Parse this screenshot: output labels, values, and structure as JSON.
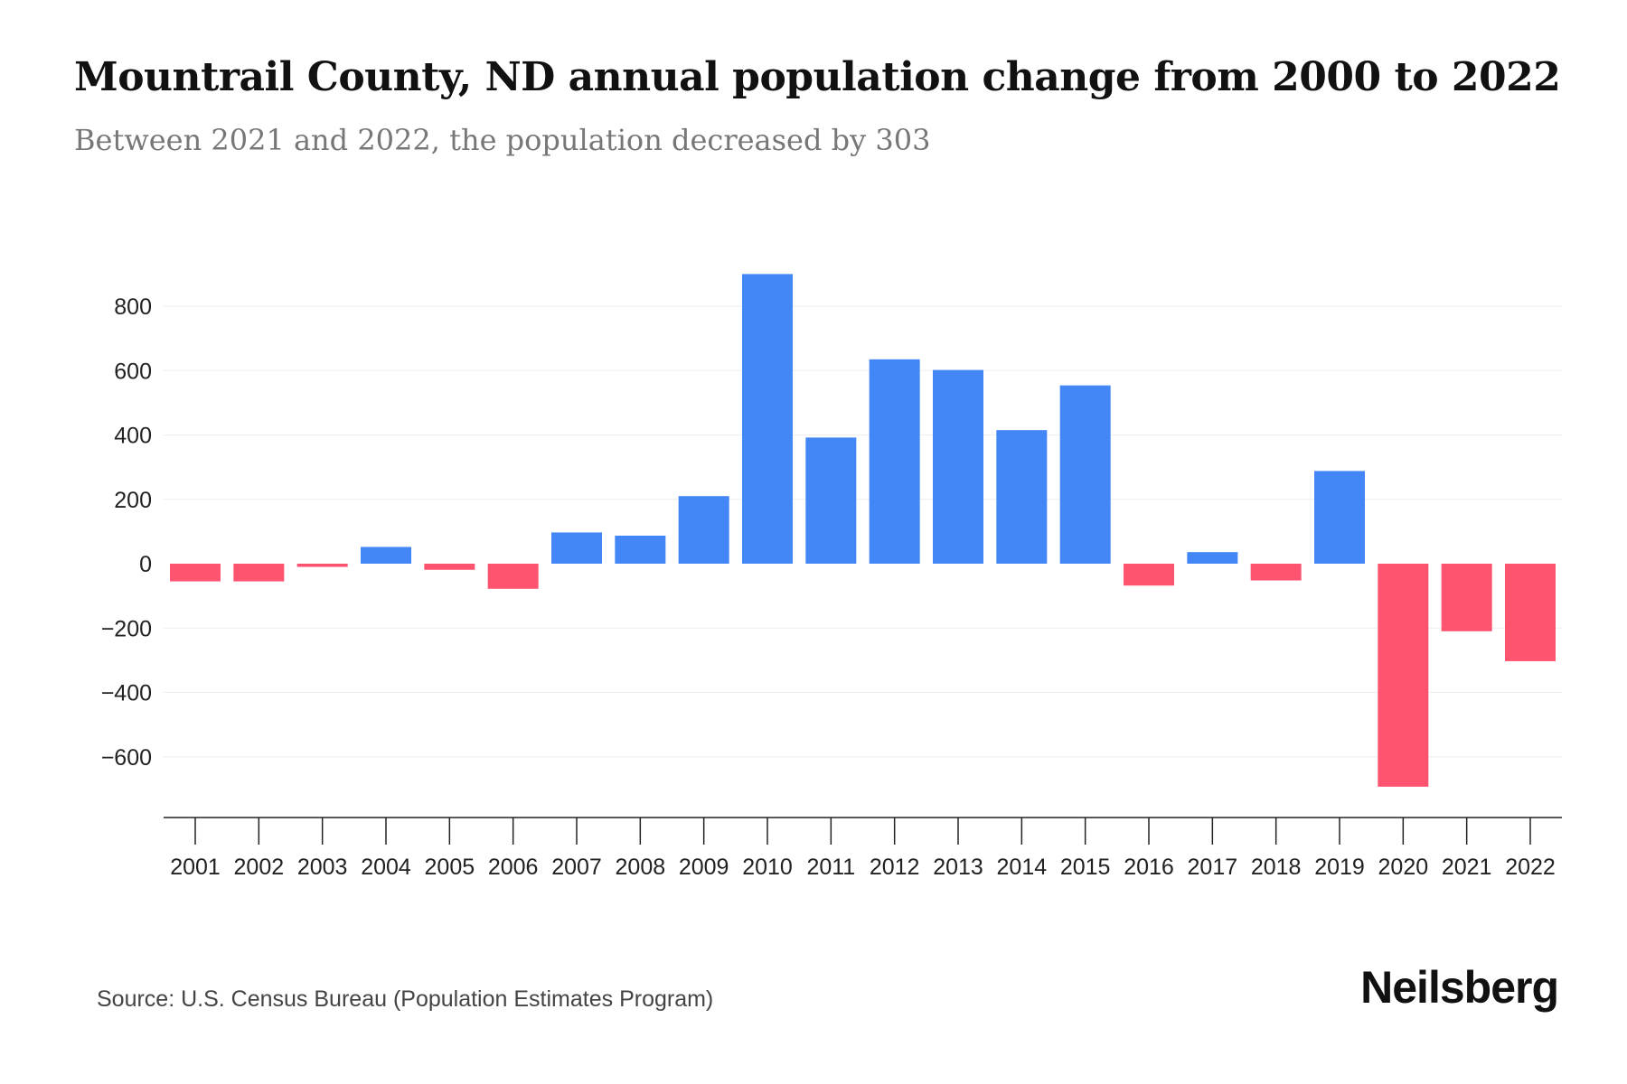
{
  "title": "Mountrail County, ND annual population change from 2000 to 2022",
  "subtitle": "Between 2021 and 2022, the population decreased by 303",
  "source": "Source: U.S. Census Bureau (Population Estimates Program)",
  "logo": "Neilsberg",
  "colors": {
    "positive": "#4287f5",
    "negative": "#ff5470"
  },
  "chart_data": {
    "type": "bar",
    "title": "Mountrail County, ND annual population change from 2000 to 2022",
    "xlabel": "",
    "ylabel": "",
    "categories": [
      "2001",
      "2002",
      "2003",
      "2004",
      "2005",
      "2006",
      "2007",
      "2008",
      "2009",
      "2010",
      "2011",
      "2012",
      "2013",
      "2014",
      "2015",
      "2016",
      "2017",
      "2018",
      "2019",
      "2020",
      "2021",
      "2022"
    ],
    "values": [
      -55,
      -55,
      -10,
      52,
      -19,
      -78,
      97,
      87,
      210,
      900,
      392,
      635,
      602,
      415,
      554,
      -68,
      36,
      -52,
      288,
      -693,
      -210,
      -303
    ],
    "yticks": [
      -600,
      -400,
      -200,
      0,
      200,
      400,
      600,
      800
    ],
    "ytick_labels": [
      "−600",
      "−400",
      "−200",
      "0",
      "200",
      "400",
      "600",
      "800"
    ],
    "ylim": [
      -790,
      900
    ],
    "grid": true,
    "legend": "none"
  }
}
